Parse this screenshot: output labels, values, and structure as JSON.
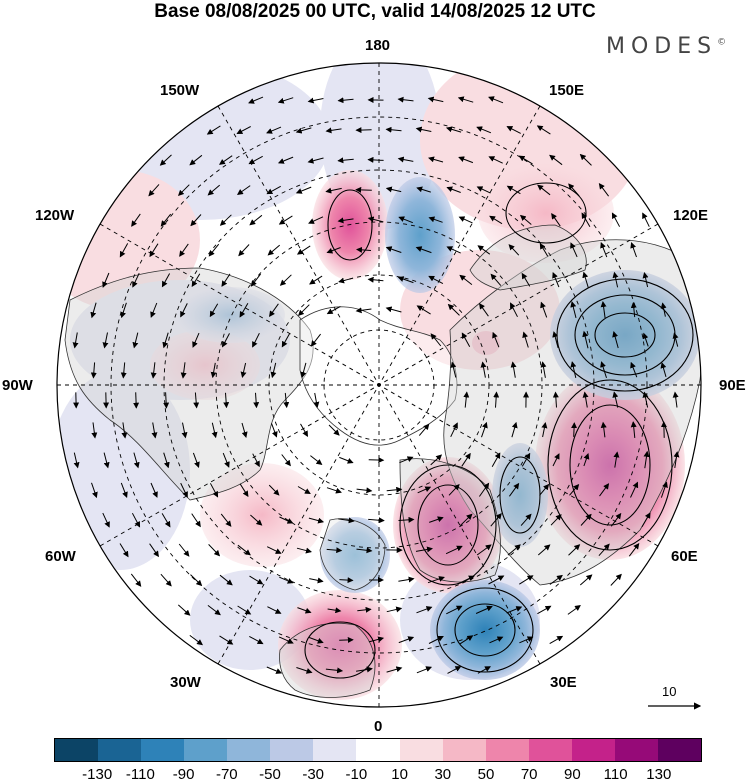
{
  "title": "Base 08/08/2025 00 UTC, valid 14/08/2025 12 UTC",
  "brand": "MODES",
  "brand_mark": "©",
  "labels": {
    "deg180": "180",
    "w150": "150W",
    "e150": "150E",
    "w120": "120W",
    "e120": "120E",
    "w90": "90W",
    "e90": "90E",
    "w60": "60W",
    "e60": "60E",
    "w30": "30W",
    "e30": "30E",
    "deg0": "0"
  },
  "reference_vector": "10",
  "colorbar": {
    "ticks": [
      "-130",
      "-110",
      "-90",
      "-70",
      "-50",
      "-30",
      "-10",
      "10",
      "30",
      "50",
      "70",
      "90",
      "110",
      "130"
    ],
    "colors": [
      "#0c4466",
      "#1a6494",
      "#2e82b8",
      "#5ea0cb",
      "#8fb6da",
      "#bcc9e6",
      "#e4e5f3",
      "#ffffff",
      "#f9dde1",
      "#f5b8c6",
      "#ee85ab",
      "#e0529a",
      "#c4228a",
      "#960a78",
      "#5e005f"
    ]
  },
  "icons": [
    "reference-arrow-icon"
  ]
}
